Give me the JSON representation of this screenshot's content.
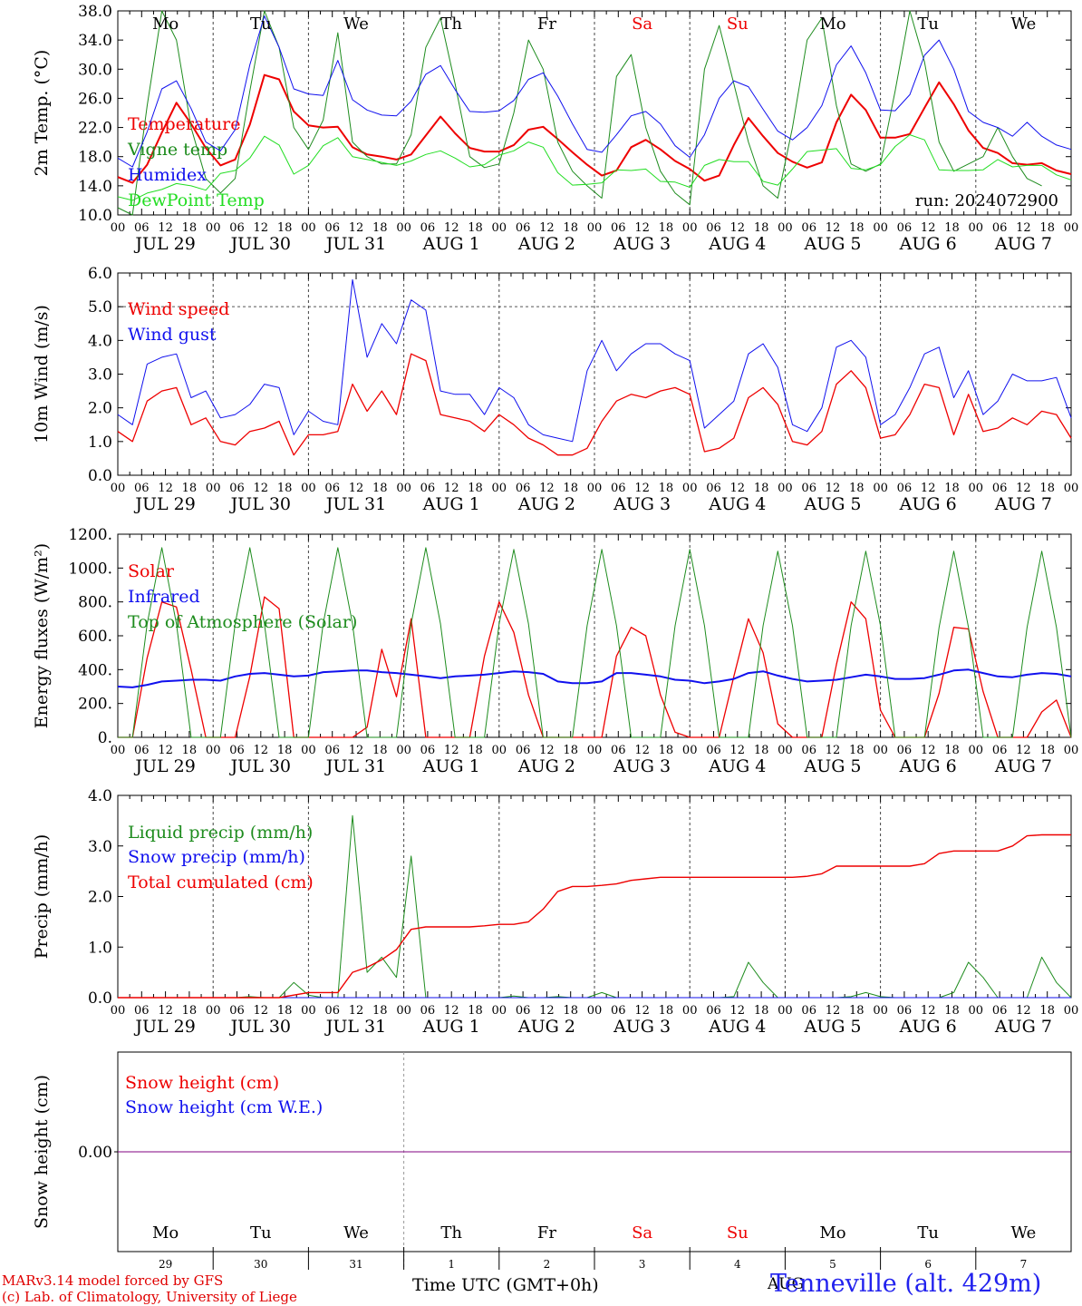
{
  "colors": {
    "red": "#ee0000",
    "green": "#1e8c1e",
    "blue": "#1010ee",
    "light_green": "#22dd22",
    "purple": "#800080"
  },
  "day_names": [
    "Mo",
    "Tu",
    "We",
    "Th",
    "Fr",
    "Sa",
    "Su",
    "Mo",
    "Tu",
    "We"
  ],
  "weekend_days": [
    5,
    6
  ],
  "date_labels": [
    "JUL 29",
    "JUL 30",
    "JUL 31",
    "AUG 1",
    "AUG 2",
    "AUG 3",
    "AUG 4",
    "AUG 5",
    "AUG 6",
    "AUG 7"
  ],
  "day_numbers": [
    "29",
    "30",
    "31",
    "1",
    "2",
    "3",
    "4",
    "5",
    "6",
    "7"
  ],
  "hour_ticks": [
    "00",
    "06",
    "12",
    "18"
  ],
  "end_hour": "00",
  "run_label": "run: 2024072900",
  "xlabel": "Time UTC (GMT+0h)",
  "month_label": "AUG",
  "station": "Tenneville (alt. 429m)",
  "footer": {
    "line1": "MARv3.14 model forced by GFS",
    "line2": "(c) Lab. of Climatology, University of Liege"
  },
  "chart_data": [
    {
      "type": "line",
      "ylabel": "2m Temp. (°C)",
      "ylim": [
        10,
        38
      ],
      "yticks": [
        "10.0",
        "14.0",
        "18.0",
        "22.0",
        "26.0",
        "30.0",
        "34.0",
        "38.0"
      ],
      "series": [
        {
          "name": "Temperature",
          "color": "red",
          "width": 2,
          "values": [
            15.2,
            14.4,
            16.9,
            21.3,
            25.4,
            22.5,
            19.2,
            16.8,
            17.6,
            22.4,
            29.2,
            28.6,
            24.2,
            22.3,
            22,
            22.1,
            19.3,
            18.3,
            18,
            17.6,
            18.3,
            20.9,
            23.5,
            21.2,
            19.2,
            18.7,
            18.7,
            19.6,
            21.7,
            22.1,
            20.4,
            18.6,
            16.9,
            15.4,
            16.1,
            19.3,
            20.3,
            19,
            17.4,
            16.3,
            14.7,
            15.4,
            19.6,
            23.3,
            20.8,
            18.5,
            17.3,
            16.5,
            17.2,
            22.7,
            26.5,
            24.4,
            20.6,
            20.6,
            21.1,
            24.7,
            28.2,
            25.2,
            21.6,
            19.2,
            18.5,
            17.1,
            16.9,
            17.1,
            16.1,
            15.6
          ]
        },
        {
          "name": "Vigne temp",
          "color": "green",
          "width": 1,
          "values": [
            11,
            10,
            25,
            38,
            34,
            22,
            15,
            13,
            15,
            27,
            38,
            33,
            22,
            19,
            23,
            35,
            20,
            18,
            17,
            17,
            21,
            33,
            37,
            28,
            18,
            16.5,
            17,
            24,
            34,
            30,
            20,
            16,
            14,
            12.3,
            29,
            32,
            22,
            16,
            13,
            11.4,
            30,
            36,
            28,
            20,
            14,
            12.3,
            22,
            34,
            37,
            25,
            17,
            16,
            17,
            27,
            38,
            31,
            20,
            16,
            17,
            18,
            22,
            18,
            15,
            14
          ]
        },
        {
          "name": "Humidex",
          "color": "blue",
          "width": 1,
          "values": [
            17.8,
            16.6,
            21.4,
            27.3,
            28.4,
            24.6,
            20,
            18.8,
            21.7,
            30.6,
            37.3,
            33,
            27.3,
            26.6,
            26.4,
            31.2,
            25.8,
            24.4,
            23.7,
            23.6,
            25.6,
            29.3,
            30.5,
            27.2,
            24.2,
            24.1,
            24.3,
            25.7,
            28.6,
            29.5,
            26.3,
            22.5,
            19,
            18.6,
            21,
            23.6,
            24.2,
            22.5,
            19.5,
            17.9,
            21,
            26,
            28.4,
            27.6,
            24.5,
            21.5,
            20.3,
            22,
            25,
            30.6,
            33.2,
            29.5,
            24.4,
            24.3,
            26.5,
            31.9,
            34,
            30,
            24.2,
            22.7,
            22,
            20.8,
            22.7,
            20.8,
            19.6,
            19
          ]
        },
        {
          "name": "DewPoint Temp",
          "color": "light_green",
          "width": 1,
          "values": [
            12.5,
            12,
            13,
            13.5,
            14.3,
            14,
            13.4,
            15.7,
            16.1,
            17.8,
            20.8,
            19.6,
            15.6,
            16.8,
            19.5,
            20.6,
            18,
            17.6,
            17.2,
            16.8,
            17.4,
            18.3,
            18.8,
            17.8,
            16.6,
            16.9,
            18.2,
            18.8,
            20,
            19.3,
            15.8,
            14.1,
            14.2,
            14.4,
            16.2,
            16.1,
            16.3,
            14.6,
            14.5,
            13.8,
            16.8,
            17.6,
            17.3,
            17.3,
            14.6,
            14.1,
            16.3,
            18.7,
            18.9,
            19.1,
            16.4,
            16.2,
            16.9,
            19.4,
            21,
            20.3,
            16.2,
            16.1,
            16.1,
            16.2,
            17.6,
            16.6,
            16.8,
            16.8,
            15.5,
            14.8
          ]
        }
      ]
    },
    {
      "type": "line",
      "ylabel": "10m Wind (m/s)",
      "ylim": [
        0,
        6
      ],
      "yticks": [
        "0.0",
        "1.0",
        "2.0",
        "3.0",
        "4.0",
        "5.0",
        "6.0"
      ],
      "ref_line": 5,
      "series": [
        {
          "name": "Wind speed",
          "color": "red",
          "width": 1.3,
          "values": [
            1.3,
            1,
            2.2,
            2.5,
            2.6,
            1.5,
            1.7,
            1,
            0.9,
            1.3,
            1.4,
            1.6,
            0.6,
            1.2,
            1.2,
            1.3,
            2.7,
            1.9,
            2.5,
            1.8,
            3.6,
            3.4,
            1.8,
            1.7,
            1.6,
            1.3,
            1.8,
            1.5,
            1.1,
            0.9,
            0.6,
            0.6,
            0.8,
            1.6,
            2.2,
            2.4,
            2.3,
            2.5,
            2.6,
            2.4,
            0.7,
            0.8,
            1.1,
            2.3,
            2.6,
            2.1,
            1,
            0.9,
            1.3,
            2.7,
            3.1,
            2.6,
            1.1,
            1.2,
            1.8,
            2.7,
            2.6,
            1.2,
            2.4,
            1.3,
            1.4,
            1.7,
            1.5,
            1.9,
            1.8,
            1.1
          ]
        },
        {
          "name": "Wind gust",
          "color": "blue",
          "width": 1,
          "values": [
            1.8,
            1.5,
            3.3,
            3.5,
            3.6,
            2.3,
            2.5,
            1.7,
            1.8,
            2.1,
            2.7,
            2.6,
            1.2,
            1.9,
            1.6,
            1.5,
            5.8,
            3.5,
            4.5,
            3.9,
            5.2,
            4.9,
            2.5,
            2.4,
            2.4,
            1.8,
            2.6,
            2.3,
            1.5,
            1.2,
            1.1,
            1,
            3.1,
            4,
            3.1,
            3.6,
            3.9,
            3.9,
            3.6,
            3.4,
            1.4,
            1.8,
            2.2,
            3.6,
            3.9,
            3.2,
            1.5,
            1.3,
            2,
            3.8,
            4,
            3.5,
            1.5,
            1.8,
            2.6,
            3.6,
            3.8,
            2.3,
            3.1,
            1.8,
            2.2,
            3,
            2.8,
            2.8,
            2.9,
            1.7
          ]
        }
      ]
    },
    {
      "type": "line",
      "ylabel": "Energy fluxes (W/m²)",
      "ylim": [
        0,
        1200
      ],
      "yticks": [
        "0.",
        "200.",
        "400.",
        "600.",
        "800.",
        "1000.",
        "1200."
      ],
      "series": [
        {
          "name": "Solar",
          "color": "red",
          "width": 1.3,
          "values": [
            0,
            0,
            470,
            800,
            770,
            400,
            0,
            0,
            0,
            360,
            830,
            760,
            0,
            0,
            0,
            0,
            0,
            60,
            520,
            240,
            700,
            0,
            0,
            0,
            0,
            480,
            800,
            620,
            250,
            0,
            0,
            0,
            0,
            0,
            480,
            650,
            600,
            250,
            30,
            0,
            0,
            0,
            360,
            700,
            500,
            80,
            0,
            0,
            0,
            430,
            800,
            700,
            160,
            0,
            0,
            0,
            260,
            650,
            640,
            270,
            0,
            0,
            0,
            150,
            220,
            0
          ]
        },
        {
          "name": "Infrared",
          "color": "blue",
          "width": 2,
          "values": [
            300,
            295,
            310,
            330,
            335,
            340,
            340,
            335,
            360,
            375,
            380,
            370,
            360,
            365,
            385,
            390,
            395,
            395,
            385,
            380,
            370,
            360,
            350,
            360,
            365,
            370,
            380,
            390,
            385,
            375,
            330,
            320,
            320,
            330,
            380,
            380,
            370,
            360,
            340,
            335,
            320,
            330,
            345,
            380,
            390,
            365,
            345,
            330,
            335,
            340,
            355,
            370,
            360,
            345,
            345,
            350,
            370,
            395,
            400,
            380,
            360,
            355,
            370,
            380,
            375,
            360
          ]
        },
        {
          "name": "Top of Atmosphere (Solar)",
          "color": "green",
          "width": 1,
          "values": [
            0,
            0,
            670,
            1120,
            670,
            0,
            0,
            0,
            670,
            1120,
            670,
            0,
            0,
            0,
            670,
            1120,
            670,
            0,
            0,
            0,
            670,
            1120,
            670,
            0,
            0,
            0,
            670,
            1110,
            670,
            0,
            0,
            0,
            660,
            1110,
            660,
            0,
            0,
            0,
            660,
            1110,
            660,
            0,
            0,
            0,
            660,
            1100,
            660,
            0,
            0,
            0,
            660,
            1100,
            660,
            0,
            0,
            0,
            650,
            1100,
            650,
            0,
            0,
            0,
            650,
            1100,
            650,
            0
          ]
        }
      ]
    },
    {
      "type": "line",
      "ylabel": "Precip (mm/h)",
      "ylim": [
        0,
        4
      ],
      "yticks": [
        "0.0",
        "1.0",
        "2.0",
        "3.0",
        "4.0"
      ],
      "series": [
        {
          "name": "Liquid precip (mm/h)",
          "color": "green",
          "width": 1,
          "values": [
            0,
            0,
            0,
            0,
            0,
            0,
            0,
            0,
            0,
            0.02,
            0,
            0,
            0.3,
            0.05,
            0,
            0,
            3.6,
            0.5,
            0.8,
            0.4,
            2.8,
            0,
            0,
            0,
            0,
            0,
            0,
            0.03,
            0,
            0,
            0.02,
            0,
            0,
            0.1,
            0,
            0,
            0,
            0,
            0,
            0,
            0,
            0,
            0.02,
            0.7,
            0.3,
            0,
            0,
            0,
            0,
            0,
            0.02,
            0.1,
            0.02,
            0,
            0,
            0,
            0,
            0.1,
            0.7,
            0.4,
            0,
            0,
            0,
            0.8,
            0.3,
            0
          ]
        },
        {
          "name": "Snow precip (mm/h)",
          "color": "blue",
          "width": 1,
          "values": [
            0,
            0,
            0,
            0,
            0,
            0,
            0,
            0,
            0,
            0,
            0,
            0,
            0,
            0,
            0,
            0,
            0,
            0,
            0,
            0,
            0,
            0,
            0,
            0,
            0,
            0,
            0,
            0,
            0,
            0,
            0,
            0,
            0,
            0,
            0,
            0,
            0,
            0,
            0,
            0,
            0,
            0,
            0,
            0,
            0,
            0,
            0,
            0,
            0,
            0,
            0,
            0,
            0,
            0,
            0,
            0,
            0,
            0,
            0,
            0,
            0,
            0,
            0,
            0,
            0,
            0
          ]
        },
        {
          "name": "Total cumulated (cm)",
          "color": "red",
          "width": 1.4,
          "values": [
            0,
            0,
            0,
            0,
            0,
            0,
            0,
            0,
            0,
            0,
            0,
            0,
            0.05,
            0.1,
            0.1,
            0.1,
            0.5,
            0.6,
            0.75,
            0.95,
            1.35,
            1.4,
            1.4,
            1.4,
            1.4,
            1.42,
            1.45,
            1.45,
            1.5,
            1.75,
            2.1,
            2.2,
            2.2,
            2.22,
            2.25,
            2.32,
            2.35,
            2.38,
            2.38,
            2.38,
            2.38,
            2.38,
            2.38,
            2.38,
            2.38,
            2.38,
            2.38,
            2.4,
            2.45,
            2.6,
            2.6,
            2.6,
            2.6,
            2.6,
            2.6,
            2.65,
            2.85,
            2.9,
            2.9,
            2.9,
            2.9,
            3,
            3.2,
            3.22,
            3.22,
            3.22
          ]
        }
      ]
    },
    {
      "type": "line",
      "ylabel": "Snow height (cm)",
      "ylim": [
        -1,
        1
      ],
      "yticks": [
        "0.00"
      ],
      "series": [
        {
          "name": "Snow height (cm)",
          "color": "red",
          "width": 1,
          "values": [
            0,
            0
          ]
        },
        {
          "name": "Snow height (cm W.E.)",
          "color": "blue",
          "width": 1,
          "values": [
            0,
            0
          ]
        }
      ]
    }
  ]
}
